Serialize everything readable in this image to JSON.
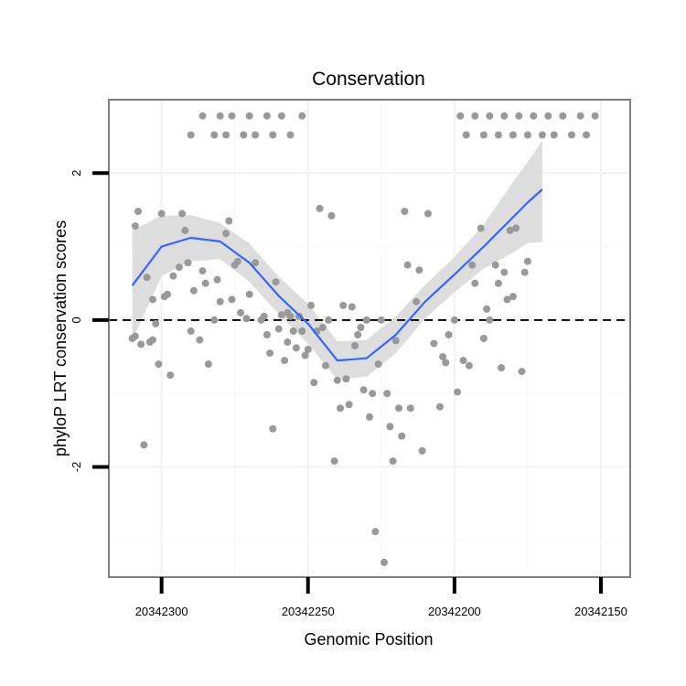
{
  "chart_data": {
    "type": "scatter",
    "title": "Conservation",
    "xlabel": "Genomic Position",
    "ylabel": "phyloP LRT conservation scores",
    "x_reversed": true,
    "xlim": [
      20342318,
      20342140
    ],
    "ylim": [
      -3.5,
      3.0
    ],
    "x_ticks": [
      20342300,
      20342250,
      20342200,
      20342150
    ],
    "x_tick_labels": [
      "20342300",
      "20342250",
      "20342200",
      "20342150"
    ],
    "y_ticks": [
      -2,
      0,
      2
    ],
    "y_tick_labels": [
      "-2",
      "0",
      "2"
    ],
    "reference_line": {
      "y": 0,
      "style": "dashed"
    },
    "grid": true,
    "series": [
      {
        "type": "scatter",
        "color": "#999999",
        "points": [
          [
            20342310,
            -0.25
          ],
          [
            20342309,
            -0.22
          ],
          [
            20342309,
            1.28
          ],
          [
            20342308,
            1.48
          ],
          [
            20342307,
            -0.33
          ],
          [
            20342306,
            -1.7
          ],
          [
            20342305,
            0.58
          ],
          [
            20342304,
            -0.3
          ],
          [
            20342303,
            -0.27
          ],
          [
            20342303,
            0.28
          ],
          [
            20342302,
            -0.05
          ],
          [
            20342301,
            -0.6
          ],
          [
            20342300,
            1.45
          ],
          [
            20342299,
            0.32
          ],
          [
            20342298,
            0.35
          ],
          [
            20342297,
            -0.75
          ],
          [
            20342296,
            0.6
          ],
          [
            20342294,
            0.72
          ],
          [
            20342293,
            1.45
          ],
          [
            20342292,
            1.22
          ],
          [
            20342291,
            0.78
          ],
          [
            20342290,
            -0.15
          ],
          [
            20342289,
            0.4
          ],
          [
            20342287,
            -0.27
          ],
          [
            20342286,
            0.67
          ],
          [
            20342285,
            0.5
          ],
          [
            20342284,
            -0.6
          ],
          [
            20342282,
            0.0
          ],
          [
            20342281,
            0.55
          ],
          [
            20342280,
            0.25
          ],
          [
            20342278,
            1.18
          ],
          [
            20342277,
            1.35
          ],
          [
            20342276,
            0.28
          ],
          [
            20342275,
            0.75
          ],
          [
            20342274,
            0.8
          ],
          [
            20342273,
            0.1
          ],
          [
            20342271,
            0.02
          ],
          [
            20342270,
            0.35
          ],
          [
            20342268,
            0.78
          ],
          [
            20342266,
            0.0
          ],
          [
            20342265,
            0.05
          ],
          [
            20342264,
            -0.2
          ],
          [
            20342263,
            -0.45
          ],
          [
            20342262,
            -1.48
          ],
          [
            20342261,
            0.52
          ],
          [
            20342260,
            -0.12
          ],
          [
            20342259,
            0.07
          ],
          [
            20342258,
            -0.55
          ],
          [
            20342257,
            -0.3
          ],
          [
            20342257,
            0.1
          ],
          [
            20342256,
            0.05
          ],
          [
            20342255,
            -0.15
          ],
          [
            20342254,
            -0.38
          ],
          [
            20342253,
            0.05
          ],
          [
            20342252,
            -0.15
          ],
          [
            20342251,
            -0.48
          ],
          [
            20342250,
            -0.4
          ],
          [
            20342249,
            0.2
          ],
          [
            20342248,
            -0.85
          ],
          [
            20342247,
            -0.15
          ],
          [
            20342246,
            1.52
          ],
          [
            20342245,
            -0.1
          ],
          [
            20342244,
            -0.62
          ],
          [
            20342243,
            0.0
          ],
          [
            20342242,
            1.42
          ],
          [
            20342241,
            -1.92
          ],
          [
            20342240,
            -0.82
          ],
          [
            20342239,
            -1.2
          ],
          [
            20342238,
            0.2
          ],
          [
            20342237,
            -0.8
          ],
          [
            20342236,
            -1.15
          ],
          [
            20342235,
            0.18
          ],
          [
            20342234,
            -0.35
          ],
          [
            20342233,
            -0.2
          ],
          [
            20342232,
            -0.1
          ],
          [
            20342231,
            -0.95
          ],
          [
            20342230,
            0.0
          ],
          [
            20342229,
            -1.32
          ],
          [
            20342228,
            -1.0
          ],
          [
            20342227,
            -2.88
          ],
          [
            20342226,
            -0.6
          ],
          [
            20342225,
            0.0
          ],
          [
            20342224,
            -3.3
          ],
          [
            20342223,
            -1.0
          ],
          [
            20342222,
            -1.45
          ],
          [
            20342221,
            -1.92
          ],
          [
            20342220,
            -0.28
          ],
          [
            20342219,
            -1.2
          ],
          [
            20342218,
            -1.58
          ],
          [
            20342217,
            1.48
          ],
          [
            20342216,
            0.75
          ],
          [
            20342215,
            -1.2
          ],
          [
            20342213,
            0.25
          ],
          [
            20342212,
            0.68
          ],
          [
            20342211,
            -1.78
          ],
          [
            20342209,
            1.45
          ],
          [
            20342207,
            -0.32
          ],
          [
            20342205,
            -1.18
          ],
          [
            20342204,
            -0.5
          ],
          [
            20342203,
            -0.58
          ],
          [
            20342202,
            -0.2
          ],
          [
            20342200,
            0.0
          ],
          [
            20342199,
            -0.98
          ],
          [
            20342197,
            -0.55
          ],
          [
            20342195,
            -0.62
          ],
          [
            20342194,
            0.75
          ],
          [
            20342193,
            0.5
          ],
          [
            20342191,
            1.25
          ],
          [
            20342190,
            -0.25
          ],
          [
            20342189,
            0.15
          ],
          [
            20342188,
            0.0
          ],
          [
            20342186,
            0.75
          ],
          [
            20342185,
            0.5
          ],
          [
            20342184,
            -0.65
          ],
          [
            20342183,
            0.65
          ],
          [
            20342182,
            0.28
          ],
          [
            20342181,
            1.22
          ],
          [
            20342180,
            0.32
          ],
          [
            20342179,
            1.25
          ],
          [
            20342177,
            -0.7
          ],
          [
            20342176,
            0.65
          ],
          [
            20342175,
            0.8
          ],
          [
            20342290,
            2.52
          ],
          [
            20342286,
            2.78
          ],
          [
            20342282,
            2.52
          ],
          [
            20342280,
            2.78
          ],
          [
            20342278,
            2.52
          ],
          [
            20342276,
            2.78
          ],
          [
            20342272,
            2.52
          ],
          [
            20342270,
            2.78
          ],
          [
            20342268,
            2.52
          ],
          [
            20342264,
            2.78
          ],
          [
            20342262,
            2.52
          ],
          [
            20342259,
            2.78
          ],
          [
            20342256,
            2.52
          ],
          [
            20342252,
            2.78
          ],
          [
            20342198,
            2.78
          ],
          [
            20342196,
            2.52
          ],
          [
            20342193,
            2.78
          ],
          [
            20342190,
            2.52
          ],
          [
            20342188,
            2.78
          ],
          [
            20342185,
            2.52
          ],
          [
            20342183,
            2.78
          ],
          [
            20342180,
            2.52
          ],
          [
            20342178,
            2.78
          ],
          [
            20342175,
            2.52
          ],
          [
            20342173,
            2.78
          ],
          [
            20342170,
            2.52
          ],
          [
            20342168,
            2.78
          ],
          [
            20342166,
            2.52
          ],
          [
            20342163,
            2.78
          ],
          [
            20342160,
            2.52
          ],
          [
            20342157,
            2.78
          ],
          [
            20342155,
            2.52
          ],
          [
            20342152,
            2.78
          ]
        ]
      },
      {
        "type": "smooth",
        "color": "#3366FF",
        "band_color": "#D9D9D9",
        "points": [
          [
            20342310,
            0.47,
            1.22,
            -0.28
          ],
          [
            20342300,
            1.0,
            1.42,
            0.6
          ],
          [
            20342290,
            1.12,
            1.43,
            0.8
          ],
          [
            20342280,
            1.07,
            1.32,
            0.83
          ],
          [
            20342270,
            0.78,
            1.04,
            0.52
          ],
          [
            20342260,
            0.33,
            0.59,
            0.08
          ],
          [
            20342250,
            -0.05,
            0.22,
            -0.32
          ],
          [
            20342240,
            -0.55,
            -0.29,
            -0.81
          ],
          [
            20342230,
            -0.52,
            -0.27,
            -0.77
          ],
          [
            20342220,
            -0.2,
            0.05,
            -0.45
          ],
          [
            20342210,
            0.25,
            0.48,
            0.02
          ],
          [
            20342200,
            0.62,
            0.86,
            0.38
          ],
          [
            20342190,
            1.0,
            1.3,
            0.7
          ],
          [
            20342180,
            1.4,
            1.88,
            0.92
          ],
          [
            20342175,
            1.6,
            2.15,
            1.05
          ],
          [
            20342170,
            1.78,
            2.45,
            1.06
          ]
        ]
      }
    ]
  }
}
